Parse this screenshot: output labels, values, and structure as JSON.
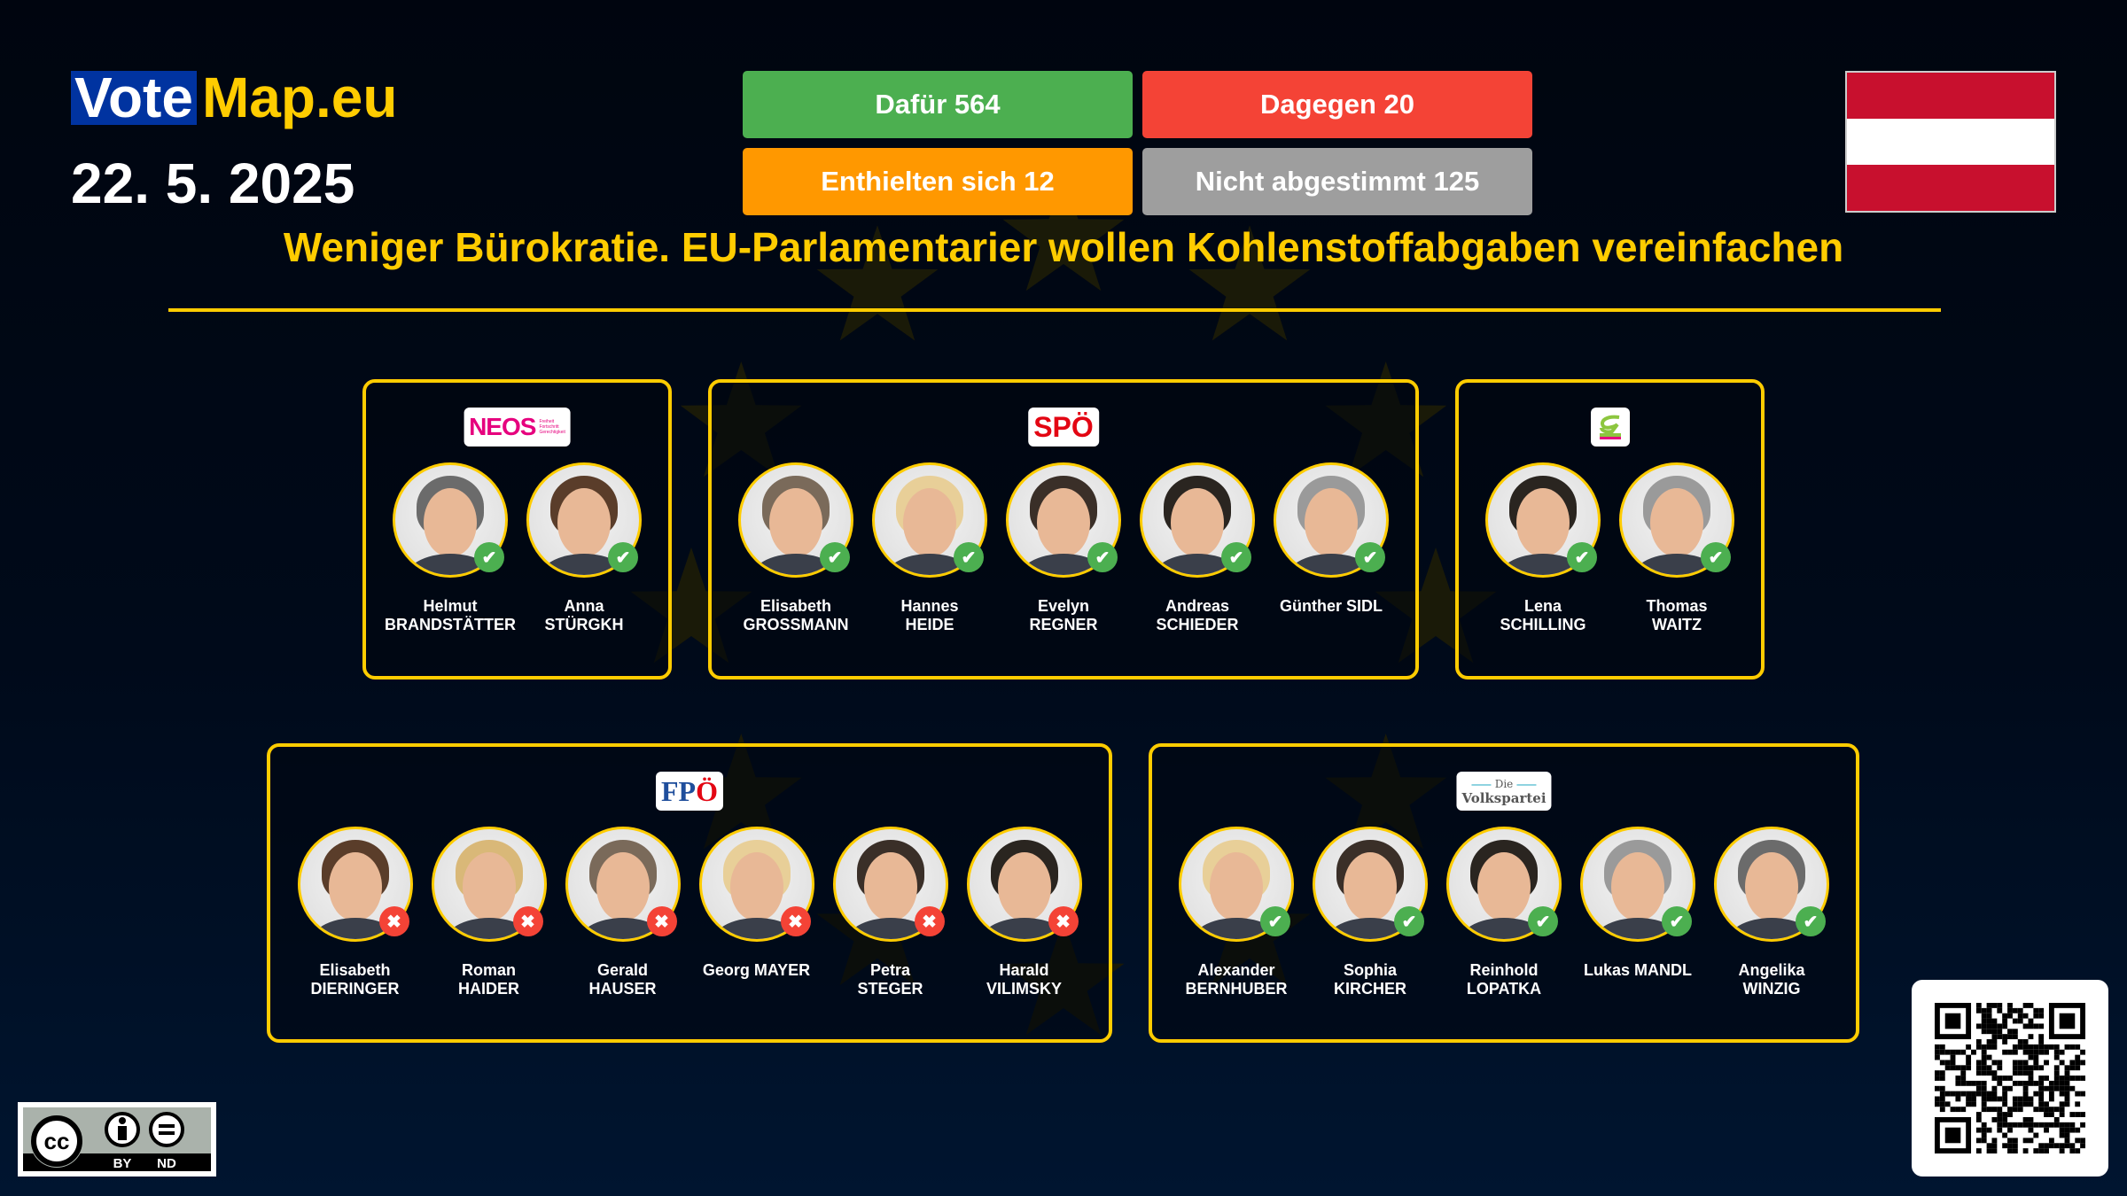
{
  "header": {
    "logo_vote": "Vote",
    "logo_map": "Map.eu",
    "date": "22. 5. 2025"
  },
  "votes": {
    "for": {
      "label": "Dafür 564",
      "color": "#4caf50"
    },
    "against": {
      "label": "Dagegen 20",
      "color": "#f44336"
    },
    "abstained": {
      "label": "Enthielten sich 12",
      "color": "#ff9800"
    },
    "not_voted": {
      "label": "Nicht abgestimmt 125",
      "color": "#9e9e9e"
    }
  },
  "country_flag": {
    "icon": "austria-flag",
    "colors": [
      "#c8102e",
      "#ffffff",
      "#c8102e"
    ]
  },
  "title": "Weniger Bürokratie. EU-Parlamentarier wollen Kohlenstoffabgaben vereinfachen",
  "accent_color": "#ffcc00",
  "parties": [
    {
      "id": "neos",
      "logo": "NEOS",
      "members": [
        {
          "first": "Helmut",
          "last": "BRANDSTÄTTER",
          "vote": "for"
        },
        {
          "first": "Anna",
          "last": "STÜRGKH",
          "vote": "for"
        }
      ]
    },
    {
      "id": "spoe",
      "logo": "SPÖ",
      "members": [
        {
          "first": "Elisabeth",
          "last": "GROSSMANN",
          "vote": "for"
        },
        {
          "first": "Hannes",
          "last": "HEIDE",
          "vote": "for"
        },
        {
          "first": "Evelyn",
          "last": "REGNER",
          "vote": "for"
        },
        {
          "first": "Andreas",
          "last": "SCHIEDER",
          "vote": "for"
        },
        {
          "first": "Günther SIDL",
          "last": "",
          "vote": "for"
        }
      ]
    },
    {
      "id": "gruene",
      "logo": "Die Grünen",
      "members": [
        {
          "first": "Lena",
          "last": "SCHILLING",
          "vote": "for"
        },
        {
          "first": "Thomas",
          "last": "WAITZ",
          "vote": "for"
        }
      ]
    },
    {
      "id": "fpoe",
      "logo": "FPÖ",
      "members": [
        {
          "first": "Elisabeth",
          "last": "DIERINGER",
          "vote": "against"
        },
        {
          "first": "Roman",
          "last": "HAIDER",
          "vote": "against"
        },
        {
          "first": "Gerald",
          "last": "HAUSER",
          "vote": "against"
        },
        {
          "first": "Georg MAYER",
          "last": "",
          "vote": "against"
        },
        {
          "first": "Petra",
          "last": "STEGER",
          "vote": "against"
        },
        {
          "first": "Harald",
          "last": "VILIMSKY",
          "vote": "against"
        }
      ]
    },
    {
      "id": "oevp",
      "logo": "Die Volkspartei",
      "members": [
        {
          "first": "Alexander",
          "last": "BERNHUBER",
          "vote": "for"
        },
        {
          "first": "Sophia",
          "last": "KIRCHER",
          "vote": "for"
        },
        {
          "first": "Reinhold",
          "last": "LOPATKA",
          "vote": "for"
        },
        {
          "first": "Lukas MANDL",
          "last": "",
          "vote": "for"
        },
        {
          "first": "Angelika",
          "last": "WINZIG",
          "vote": "for"
        }
      ]
    }
  ],
  "license": {
    "icon": "cc-by-nd-badge",
    "by": "BY",
    "nd": "ND"
  },
  "qr": {
    "icon": "qr-code"
  }
}
